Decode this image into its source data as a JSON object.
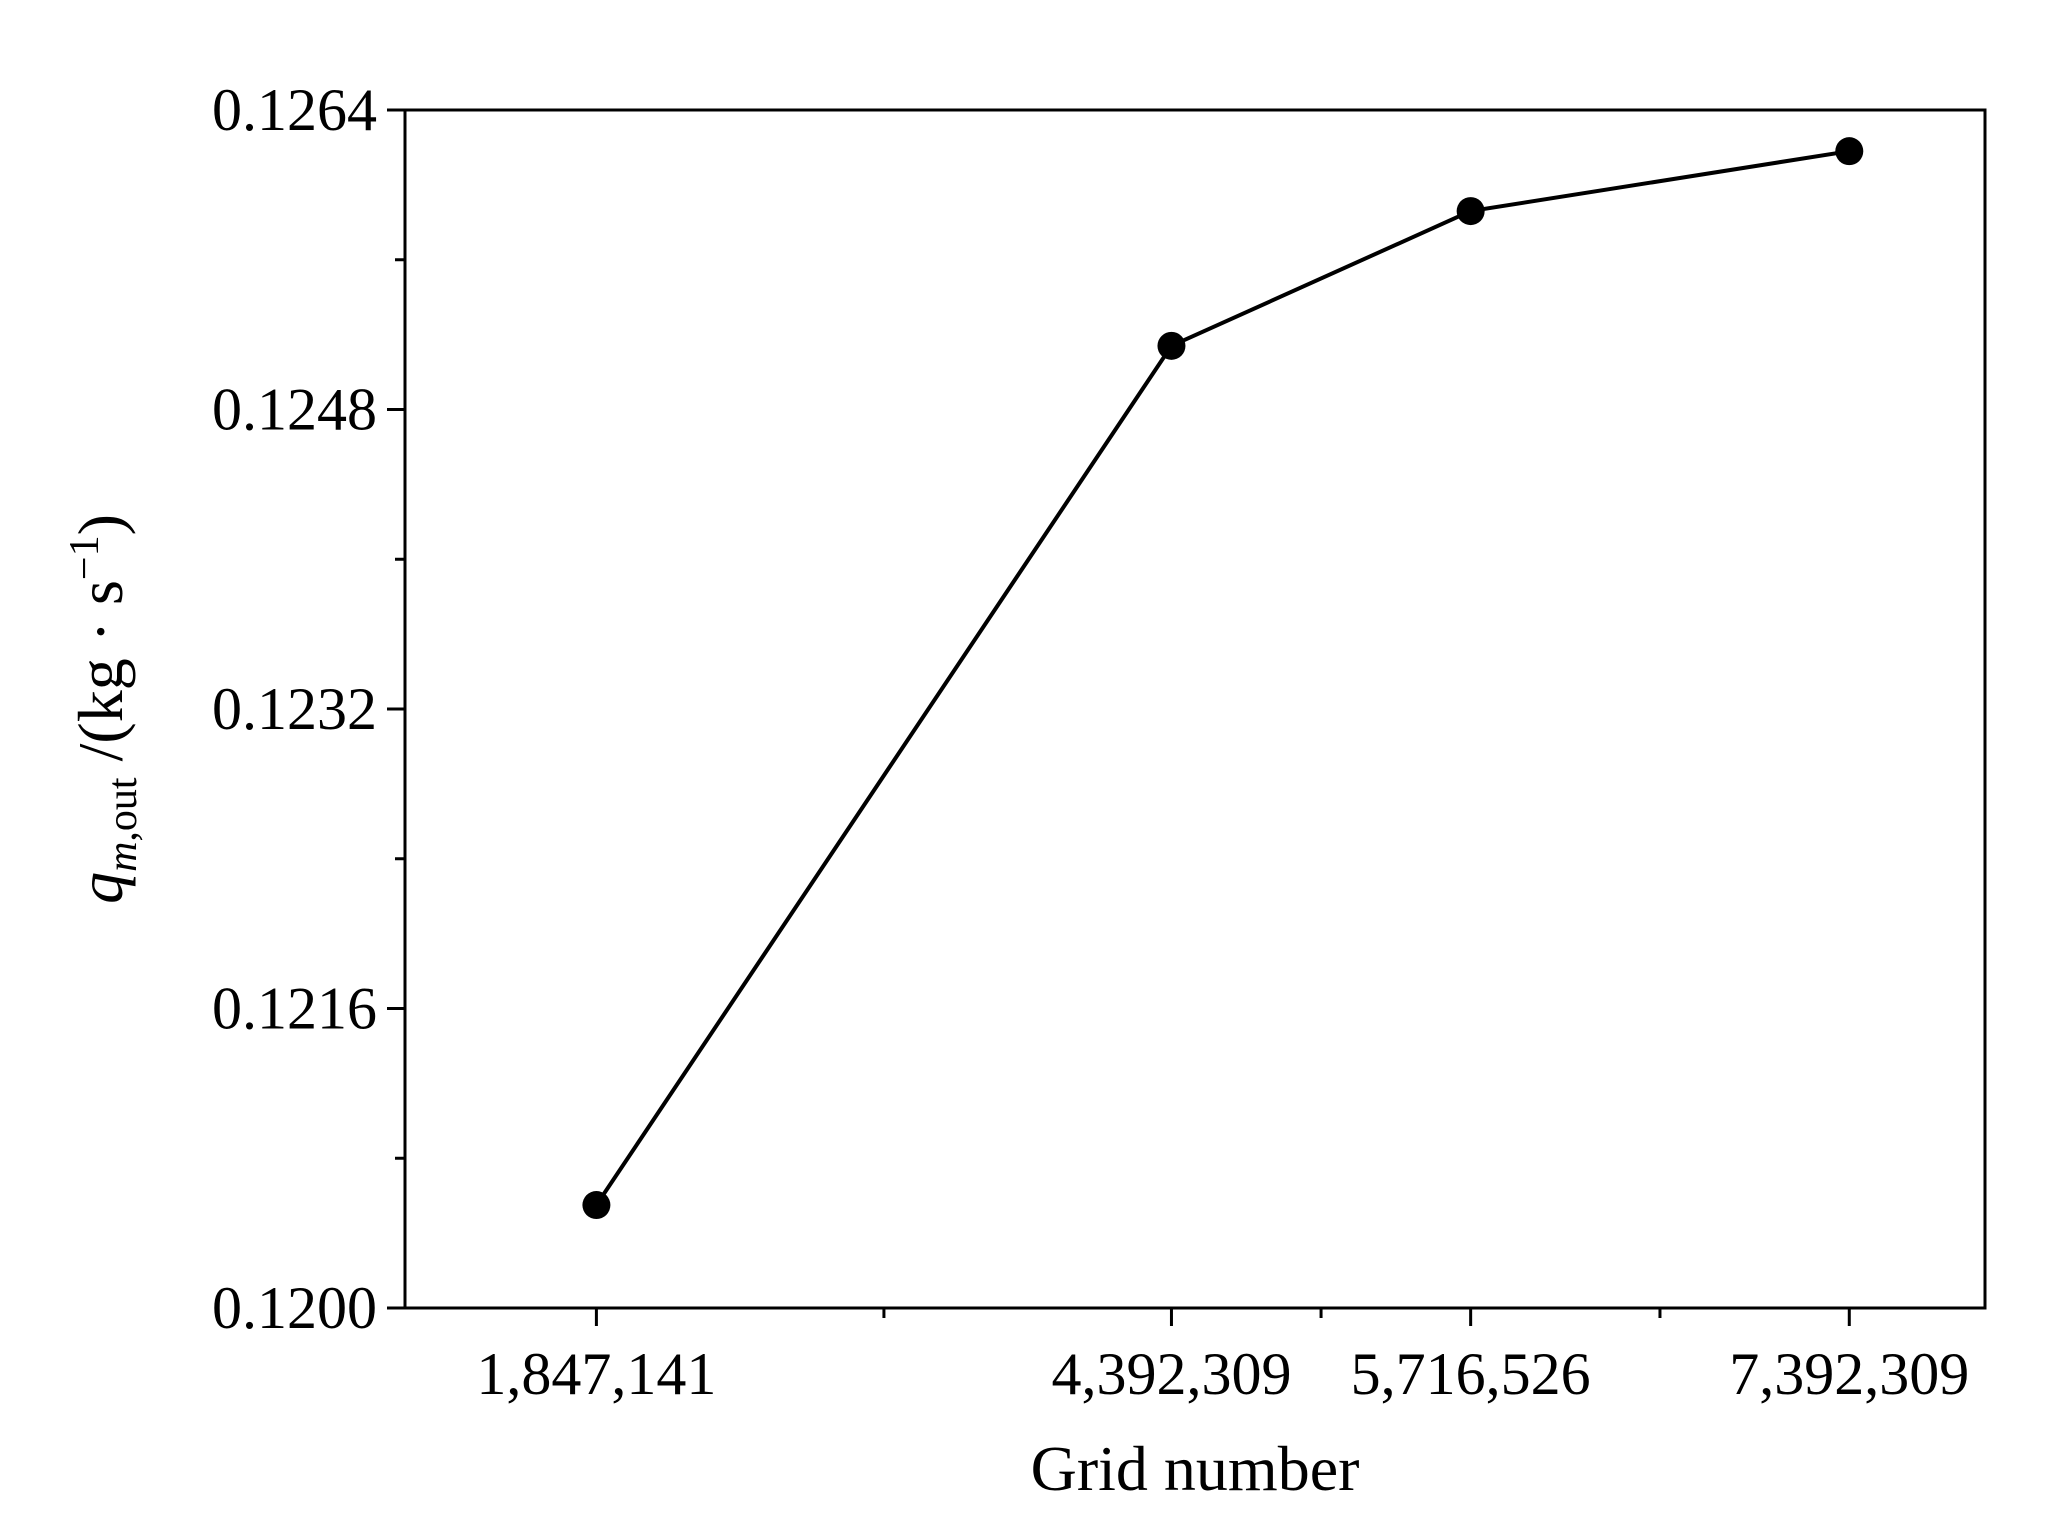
{
  "chart_data": {
    "type": "line",
    "title": "",
    "xlabel": "Grid number",
    "ylabel": {
      "symbol": "q",
      "subscript_italic": "m",
      "subscript_rest": ",out",
      "unit_prefix": " /(kg · s",
      "superscript": "−1",
      "unit_suffix": ")"
    },
    "x": [
      1847141,
      4392309,
      5716526,
      7392309
    ],
    "x_tick_labels": [
      "1,847,141",
      "4,392,309",
      "5,716,526",
      "7,392,309"
    ],
    "y": [
      0.12055,
      0.12514,
      0.12586,
      0.12618
    ],
    "xlim": [
      1000000,
      7993000
    ],
    "ylim": [
      0.12,
      0.1264
    ],
    "y_ticks": [
      0.12,
      0.1216,
      0.1232,
      0.1248,
      0.1264
    ],
    "y_tick_labels": [
      "0.1200",
      "0.1216",
      "0.1232",
      "0.1248",
      "0.1264"
    ],
    "y_minor_ticks": [
      0.1208,
      0.1224,
      0.124,
      0.1256
    ],
    "x_minor_ticks": [
      3119725,
      5054418,
      6554418
    ],
    "marker": "circle",
    "color": "#000000",
    "grid": false,
    "legend": "none"
  }
}
